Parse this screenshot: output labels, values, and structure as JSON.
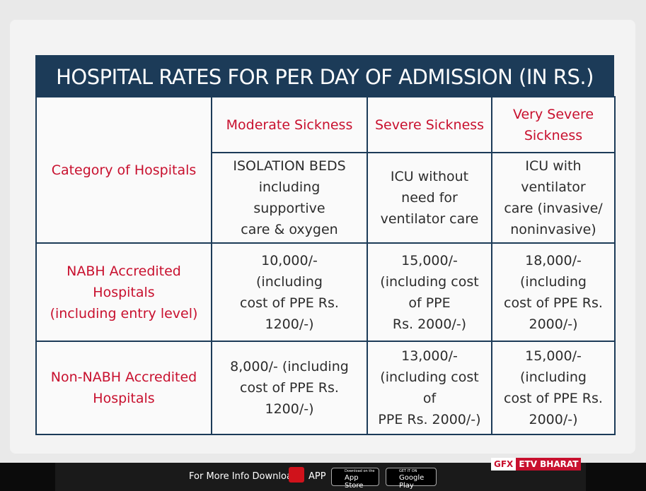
{
  "title": "HOSPITAL RATES FOR PER DAY OF ADMISSION (IN RS.)",
  "table": {
    "corner": "Category of Hospitals",
    "levels": [
      "Moderate Sickness",
      "Severe Sickness",
      "Very Severe\nSickness"
    ],
    "care": [
      "ISOLATION BEDS\nincluding\nsupportive\ncare & oxygen",
      "ICU without\nneed for\nventilator care",
      "ICU with\nventilator\ncare (invasive/\nnoninvasive)"
    ],
    "rows": [
      [
        "NABH Accredited\nHospitals\n(including entry level)",
        "10,000/-\n(including\ncost of PPE Rs.\n1200/-)",
        "15,000/-\n(including cost\nof PPE\nRs. 2000/-)",
        "18,000/-\n(including\ncost of PPE Rs.\n2000/-)"
      ],
      [
        "Non-NABH Accredited\nHospitals",
        "8,000/- (including\ncost of PPE Rs.\n1200/-)",
        "13,000/-\n(including cost\nof\nPPE Rs. 2000/-)",
        "15,000/-\n(including\ncost of PPE Rs.\n2000/-)"
      ]
    ]
  },
  "footer": {
    "text": "For More Info Download",
    "app": "APP",
    "appstore_small": "Download on the",
    "appstore": "App Store",
    "googleplay_small": "GET IT ON",
    "googleplay": "Google Play",
    "gfx": "GFX",
    "brand": "ETV BHARAT"
  }
}
